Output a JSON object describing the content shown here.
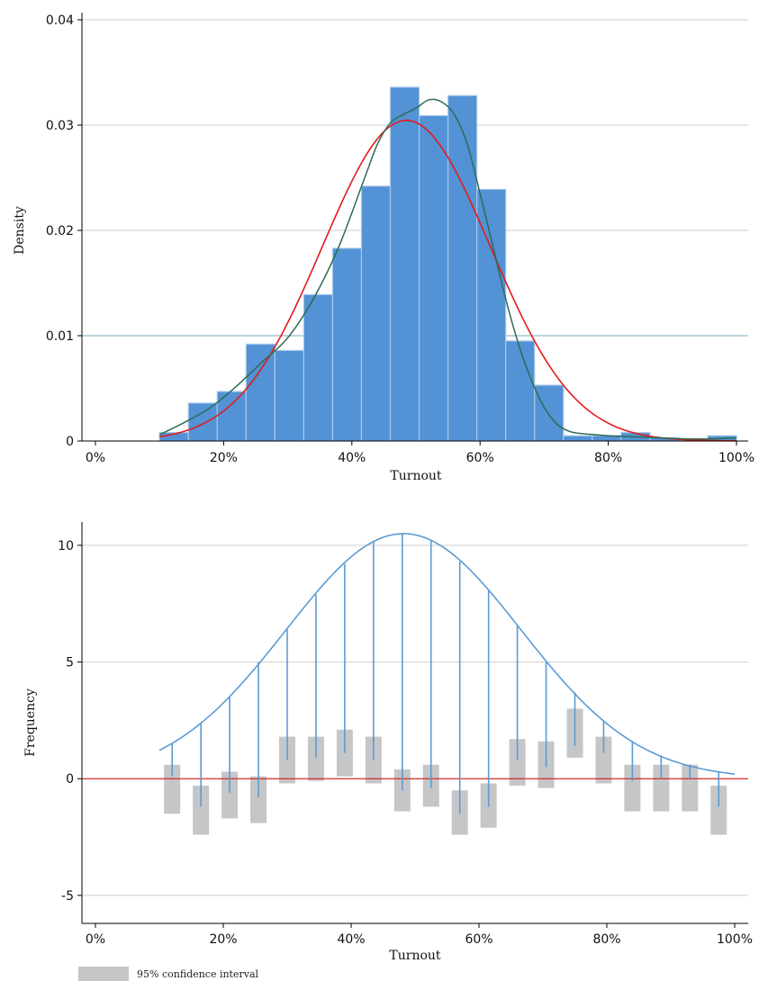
{
  "chart_data": [
    {
      "type": "histogram",
      "xlabel": "Turnout",
      "ylabel": "Density",
      "xlim": [
        0,
        100
      ],
      "ylim": [
        0,
        0.04
      ],
      "x_ticks": [
        "0%",
        "20%",
        "40%",
        "60%",
        "80%",
        "100%"
      ],
      "x_tick_values": [
        0,
        20,
        40,
        60,
        80,
        100
      ],
      "y_ticks": [
        "0",
        "0.01",
        "0.02",
        "0.03",
        "0.04"
      ],
      "y_tick_values": [
        0,
        0.01,
        0.02,
        0.03,
        0.04
      ],
      "grid": true,
      "bin_width": 4.5,
      "bins": [
        {
          "start": 10,
          "density": 0.0008
        },
        {
          "start": 14.5,
          "density": 0.0036
        },
        {
          "start": 19,
          "density": 0.0047
        },
        {
          "start": 23.5,
          "density": 0.0092
        },
        {
          "start": 28,
          "density": 0.0086
        },
        {
          "start": 32.5,
          "density": 0.0139
        },
        {
          "start": 37,
          "density": 0.0183
        },
        {
          "start": 41.5,
          "density": 0.0242
        },
        {
          "start": 46,
          "density": 0.0336
        },
        {
          "start": 50.5,
          "density": 0.0309
        },
        {
          "start": 55,
          "density": 0.0328
        },
        {
          "start": 59.5,
          "density": 0.0239
        },
        {
          "start": 64,
          "density": 0.0095
        },
        {
          "start": 68.5,
          "density": 0.0053
        },
        {
          "start": 73,
          "density": 0.0005
        },
        {
          "start": 77.5,
          "density": 0.0005
        },
        {
          "start": 82,
          "density": 0.0008
        },
        {
          "start": 86.5,
          "density": 0.0003
        },
        {
          "start": 91,
          "density": 0.0001
        },
        {
          "start": 95.5,
          "density": 0.0005
        }
      ],
      "normal_curve": {
        "mean": 48.5,
        "sd": 13.1,
        "color": "#e41a1c"
      },
      "kde_curve": {
        "color": "#2e6b55",
        "x": [
          10,
          14,
          18,
          22,
          26,
          30,
          34,
          38,
          42,
          44,
          46,
          48,
          50,
          52,
          54,
          56,
          58,
          60,
          62,
          64,
          66,
          68,
          70,
          72,
          74,
          76,
          78,
          80,
          84,
          88,
          92,
          96,
          100
        ],
        "y": [
          0.0006,
          0.0018,
          0.0032,
          0.0052,
          0.0075,
          0.0098,
          0.0135,
          0.0185,
          0.025,
          0.0282,
          0.0302,
          0.031,
          0.0316,
          0.0324,
          0.0322,
          0.031,
          0.0282,
          0.0235,
          0.0185,
          0.0135,
          0.0092,
          0.0058,
          0.0032,
          0.0016,
          0.0009,
          0.0007,
          0.0006,
          0.0005,
          0.0004,
          0.0003,
          0.0002,
          0.0002,
          0.0003
        ]
      },
      "reference_line": {
        "y": 0.01,
        "color": "#8fbcc6"
      },
      "bar_color": "#5292d5"
    },
    {
      "type": "rootogram",
      "xlabel": "Turnout",
      "ylabel": "Frequency",
      "xlim": [
        0,
        100
      ],
      "ylim": [
        -5,
        11
      ],
      "x_ticks": [
        "0%",
        "20%",
        "40%",
        "60%",
        "80%",
        "100%"
      ],
      "x_tick_values": [
        0,
        20,
        40,
        60,
        80,
        100
      ],
      "y_ticks": [
        "-5",
        "0",
        "5",
        "10"
      ],
      "y_tick_values": [
        -5,
        0,
        5,
        10
      ],
      "grid": true,
      "zero_line_color": "#d62728",
      "curve_color": "#5b9bd5",
      "ci_color": "#c5c6c8",
      "curve": {
        "mean": 48.2,
        "sd": 18.4,
        "peak": 10.5,
        "x_start": 10,
        "x_end": 100
      },
      "items": [
        {
          "x": 12,
          "expected": 1.5,
          "observed_sqrt": 1.4,
          "ci": [
            -1.5,
            0.6
          ]
        },
        {
          "x": 16.5,
          "expected": 2.4,
          "observed_sqrt": 3.6,
          "ci": [
            -2.4,
            -0.3
          ]
        },
        {
          "x": 21,
          "expected": 3.5,
          "observed_sqrt": 4.1,
          "ci": [
            -1.7,
            0.3
          ]
        },
        {
          "x": 25.5,
          "expected": 5.0,
          "observed_sqrt": 5.8,
          "ci": [
            -1.9,
            0.1
          ]
        },
        {
          "x": 30,
          "expected": 6.4,
          "observed_sqrt": 5.6,
          "ci": [
            -0.2,
            1.8
          ]
        },
        {
          "x": 34.5,
          "expected": 7.9,
          "observed_sqrt": 7.0,
          "ci": [
            -0.1,
            1.8
          ]
        },
        {
          "x": 39,
          "expected": 9.2,
          "observed_sqrt": 8.1,
          "ci": [
            0.1,
            2.1
          ]
        },
        {
          "x": 43.5,
          "expected": 10.2,
          "observed_sqrt": 9.4,
          "ci": [
            -0.2,
            1.8
          ]
        },
        {
          "x": 48,
          "expected": 10.5,
          "observed_sqrt": 11.0,
          "ci": [
            -1.4,
            0.4
          ]
        },
        {
          "x": 52.5,
          "expected": 10.2,
          "observed_sqrt": 10.6,
          "ci": [
            -1.2,
            0.6
          ]
        },
        {
          "x": 57,
          "expected": 9.3,
          "observed_sqrt": 10.8,
          "ci": [
            -2.4,
            -0.5
          ]
        },
        {
          "x": 61.5,
          "expected": 8.1,
          "observed_sqrt": 9.3,
          "ci": [
            -2.1,
            -0.2
          ]
        },
        {
          "x": 66,
          "expected": 6.6,
          "observed_sqrt": 5.8,
          "ci": [
            -0.3,
            1.7
          ]
        },
        {
          "x": 70.5,
          "expected": 5.0,
          "observed_sqrt": 4.5,
          "ci": [
            -0.4,
            1.6
          ]
        },
        {
          "x": 75,
          "expected": 3.7,
          "observed_sqrt": 2.3,
          "ci": [
            0.9,
            3.0
          ]
        },
        {
          "x": 79.5,
          "expected": 2.5,
          "observed_sqrt": 1.4,
          "ci": [
            -0.2,
            1.8
          ]
        },
        {
          "x": 84,
          "expected": 1.6,
          "observed_sqrt": 1.7,
          "ci": [
            -1.4,
            0.6
          ]
        },
        {
          "x": 88.5,
          "expected": 1.0,
          "observed_sqrt": 1.0,
          "ci": [
            -1.4,
            0.6
          ]
        },
        {
          "x": 93,
          "expected": 0.6,
          "observed_sqrt": 0.6,
          "ci": [
            -1.4,
            0.6
          ]
        },
        {
          "x": 97.5,
          "expected": 0.3,
          "observed_sqrt": 1.5,
          "ci": [
            -2.4,
            -0.3
          ]
        }
      ],
      "legend": {
        "label": "95% confidence interval",
        "placement": "bottom-left"
      }
    }
  ]
}
